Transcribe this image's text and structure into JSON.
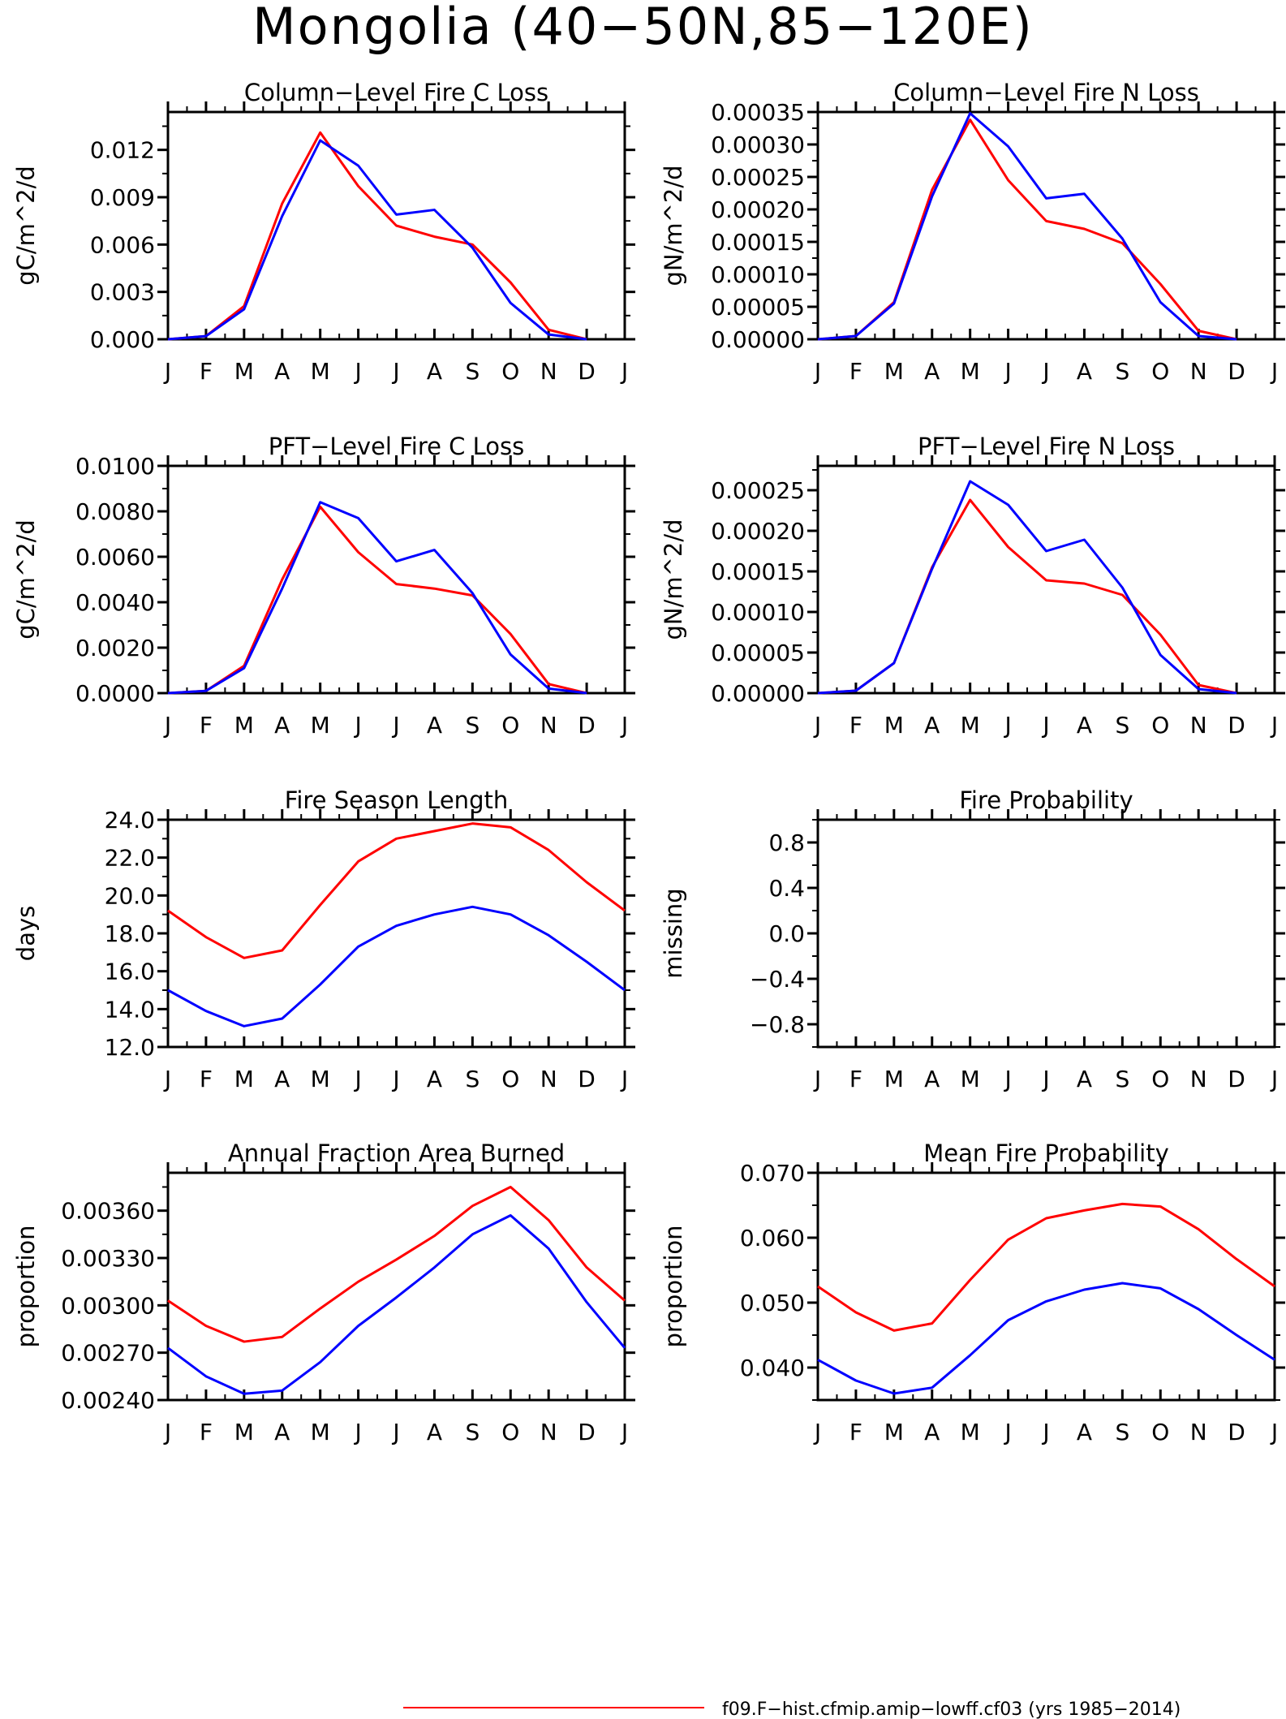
{
  "title": "Mongolia (40−50N,85−120E)",
  "colors": {
    "red": "#ff0000",
    "blue": "#0000ff"
  },
  "months": [
    "J",
    "F",
    "M",
    "A",
    "M",
    "J",
    "J",
    "A",
    "S",
    "O",
    "N",
    "D",
    "J"
  ],
  "legend": {
    "entries": [
      {
        "label": "f09.F−hist.cfmip.amip−lowff.cf03 (yrs 1985−2014)",
        "color": "#ff0000"
      }
    ]
  },
  "chart_data": [
    {
      "type": "line",
      "title": "Column−Level Fire C Loss",
      "ylabel": "gC/m^2/d",
      "ylim": [
        0,
        0.0144
      ],
      "yticks": [
        "0.000",
        "0.003",
        "0.006",
        "0.009",
        "0.012"
      ],
      "ytick_values": [
        0,
        0.003,
        0.006,
        0.009,
        0.012
      ],
      "x": [
        "J",
        "F",
        "M",
        "A",
        "M",
        "J",
        "J",
        "A",
        "S",
        "O",
        "N",
        "D",
        "J"
      ],
      "series": [
        {
          "color": "#ff0000",
          "values": [
            0.0,
            0.0002,
            0.0021,
            0.0086,
            0.0131,
            0.0097,
            0.0072,
            0.0065,
            0.006,
            0.0036,
            0.0006,
            0.0,
            null
          ]
        },
        {
          "color": "#0000ff",
          "values": [
            0.0,
            0.0002,
            0.0019,
            0.0078,
            0.0126,
            0.011,
            0.0079,
            0.0082,
            0.0058,
            0.0023,
            0.0003,
            0.0,
            null
          ]
        }
      ]
    },
    {
      "type": "line",
      "title": "Column−Level Fire N Loss",
      "ylabel": "gN/m^2/d",
      "ylim": [
        0,
        0.00035
      ],
      "yticks": [
        "0.00000",
        "0.00005",
        "0.00010",
        "0.00015",
        "0.00020",
        "0.00025",
        "0.00030",
        "0.00035"
      ],
      "ytick_values": [
        0,
        5e-05,
        0.0001,
        0.00015,
        0.0002,
        0.00025,
        0.0003,
        0.00035
      ],
      "x": [
        "J",
        "F",
        "M",
        "A",
        "M",
        "J",
        "J",
        "A",
        "S",
        "O",
        "N",
        "D",
        "J"
      ],
      "series": [
        {
          "color": "#ff0000",
          "values": [
            0.0,
            5e-06,
            5.7e-05,
            0.00023,
            0.000338,
            0.000245,
            0.000182,
            0.00017,
            0.000148,
            8.5e-05,
            1.3e-05,
            0.0,
            null
          ]
        },
        {
          "color": "#0000ff",
          "values": [
            0.0,
            5e-06,
            5.5e-05,
            0.00022,
            0.000348,
            0.000297,
            0.000217,
            0.000224,
            0.000155,
            5.7e-05,
            5e-06,
            0.0,
            null
          ]
        }
      ]
    },
    {
      "type": "line",
      "title": "PFT−Level Fire C Loss",
      "ylabel": "gC/m^2/d",
      "ylim": [
        0,
        0.01
      ],
      "yticks": [
        "0.0000",
        "0.0020",
        "0.0040",
        "0.0060",
        "0.0080",
        "0.0100"
      ],
      "ytick_values": [
        0,
        0.002,
        0.004,
        0.006,
        0.008,
        0.01
      ],
      "x": [
        "J",
        "F",
        "M",
        "A",
        "M",
        "J",
        "J",
        "A",
        "S",
        "O",
        "N",
        "D",
        "J"
      ],
      "series": [
        {
          "color": "#ff0000",
          "values": [
            0.0,
            0.0001,
            0.0012,
            0.005,
            0.0082,
            0.0062,
            0.0048,
            0.0046,
            0.0043,
            0.0026,
            0.0004,
            0.0,
            null
          ]
        },
        {
          "color": "#0000ff",
          "values": [
            0.0,
            0.0001,
            0.0011,
            0.0046,
            0.0084,
            0.0077,
            0.0058,
            0.0063,
            0.0044,
            0.0017,
            0.0002,
            0.0,
            null
          ]
        }
      ]
    },
    {
      "type": "line",
      "title": "PFT−Level Fire N Loss",
      "ylabel": "gN/m^2/d",
      "ylim": [
        0,
        0.00028
      ],
      "yticks": [
        "0.00000",
        "0.00005",
        "0.00010",
        "0.00015",
        "0.00020",
        "0.00025"
      ],
      "ytick_values": [
        0,
        5e-05,
        0.0001,
        0.00015,
        0.0002,
        0.00025
      ],
      "x": [
        "J",
        "F",
        "M",
        "A",
        "M",
        "J",
        "J",
        "A",
        "S",
        "O",
        "N",
        "D",
        "J"
      ],
      "series": [
        {
          "color": "#ff0000",
          "values": [
            0.0,
            3e-06,
            3.7e-05,
            0.000155,
            0.000238,
            0.00018,
            0.000139,
            0.000135,
            0.000121,
            7.2e-05,
            1e-05,
            0.0,
            null
          ]
        },
        {
          "color": "#0000ff",
          "values": [
            0.0,
            3e-06,
            3.7e-05,
            0.000153,
            0.000261,
            0.000232,
            0.000175,
            0.000189,
            0.00013,
            4.7e-05,
            5e-06,
            0.0,
            null
          ]
        }
      ]
    },
    {
      "type": "line",
      "title": "Fire Season Length",
      "ylabel": "days",
      "ylim": [
        12,
        24
      ],
      "yticks": [
        "12.0",
        "14.0",
        "16.0",
        "18.0",
        "20.0",
        "22.0",
        "24.0"
      ],
      "ytick_values": [
        12,
        14,
        16,
        18,
        20,
        22,
        24
      ],
      "x": [
        "J",
        "F",
        "M",
        "A",
        "M",
        "J",
        "J",
        "A",
        "S",
        "O",
        "N",
        "D",
        "J"
      ],
      "series": [
        {
          "color": "#ff0000",
          "values": [
            19.2,
            17.8,
            16.7,
            17.1,
            19.5,
            21.8,
            23.0,
            23.4,
            23.8,
            23.6,
            22.4,
            20.7,
            19.2
          ]
        },
        {
          "color": "#0000ff",
          "values": [
            15.0,
            13.9,
            13.1,
            13.5,
            15.3,
            17.3,
            18.4,
            19.0,
            19.4,
            19.0,
            17.9,
            16.5,
            15.0
          ]
        }
      ]
    },
    {
      "type": "line",
      "title": "Fire Probability",
      "ylabel": "missing",
      "ylim": [
        -1,
        1
      ],
      "yticks": [
        "−0.8",
        "−0.4",
        "0.0",
        "0.4",
        "0.8"
      ],
      "ytick_values": [
        -0.8,
        -0.4,
        0,
        0.4,
        0.8
      ],
      "x": [
        "J",
        "F",
        "M",
        "A",
        "M",
        "J",
        "J",
        "A",
        "S",
        "O",
        "N",
        "D",
        "J"
      ],
      "series": []
    },
    {
      "type": "line",
      "title": "Annual Fraction Area Burned",
      "ylabel": "proportion",
      "ylim": [
        0.0024,
        0.00384
      ],
      "yticks": [
        "0.00240",
        "0.00270",
        "0.00300",
        "0.00330",
        "0.00360"
      ],
      "ytick_values": [
        0.0024,
        0.0027,
        0.003,
        0.0033,
        0.0036
      ],
      "x": [
        "J",
        "F",
        "M",
        "A",
        "M",
        "J",
        "J",
        "A",
        "S",
        "O",
        "N",
        "D",
        "J"
      ],
      "series": [
        {
          "color": "#ff0000",
          "values": [
            0.00303,
            0.00287,
            0.00277,
            0.0028,
            0.00298,
            0.00315,
            0.00329,
            0.00344,
            0.00363,
            0.00375,
            0.00354,
            0.00324,
            0.00303
          ]
        },
        {
          "color": "#0000ff",
          "values": [
            0.00273,
            0.00255,
            0.00244,
            0.00246,
            0.00264,
            0.00287,
            0.00305,
            0.00324,
            0.00345,
            0.00357,
            0.00336,
            0.00302,
            0.00273
          ]
        }
      ]
    },
    {
      "type": "line",
      "title": "Mean Fire Probability",
      "ylabel": "proportion",
      "ylim": [
        0.035,
        0.07
      ],
      "yticks": [
        "0.040",
        "0.050",
        "0.060",
        "0.070"
      ],
      "ytick_values": [
        0.04,
        0.05,
        0.06,
        0.07
      ],
      "x": [
        "J",
        "F",
        "M",
        "A",
        "M",
        "J",
        "J",
        "A",
        "S",
        "O",
        "N",
        "D",
        "J"
      ],
      "series": [
        {
          "color": "#ff0000",
          "values": [
            0.0525,
            0.0485,
            0.0457,
            0.0468,
            0.0535,
            0.0597,
            0.063,
            0.0642,
            0.0652,
            0.0648,
            0.0613,
            0.0567,
            0.0525
          ]
        },
        {
          "color": "#0000ff",
          "values": [
            0.0412,
            0.038,
            0.036,
            0.0369,
            0.0419,
            0.0473,
            0.0502,
            0.052,
            0.053,
            0.0522,
            0.049,
            0.045,
            0.0412
          ]
        }
      ]
    }
  ]
}
